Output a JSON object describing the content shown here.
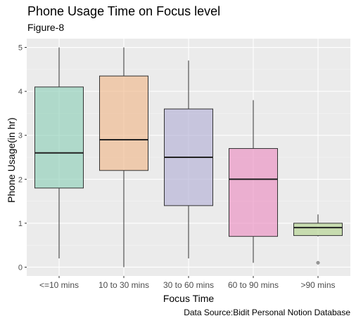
{
  "chart_data": {
    "type": "box",
    "title": "Phone Usage Time on Focus level",
    "subtitle": "Figure-8",
    "xlabel": "Focus Time",
    "ylabel": "Phone Usage(in hr)",
    "caption": "Data Source:Bidit Personal Notion Database",
    "ylim": [
      -0.2,
      5.2
    ],
    "yticks": [
      "0",
      "1",
      "2",
      "3",
      "4",
      "5"
    ],
    "grid": true,
    "boxes": [
      {
        "category": "<=10 mins",
        "min": 0.2,
        "q1": 1.8,
        "median": 2.6,
        "q3": 4.1,
        "max": 5.0,
        "outliers": [],
        "color": "#8fcfb9"
      },
      {
        "category": "10 to 30 mins",
        "min": 0.0,
        "q1": 2.2,
        "median": 2.9,
        "q3": 4.35,
        "max": 5.0,
        "outliers": [],
        "color": "#f0b98c"
      },
      {
        "category": "30 to 60 mins",
        "min": 0.2,
        "q1": 1.4,
        "median": 2.5,
        "q3": 3.6,
        "max": 4.7,
        "outliers": [],
        "color": "#b3b0d6"
      },
      {
        "category": "60 to 90 mins",
        "min": 0.1,
        "q1": 0.7,
        "median": 2.0,
        "q3": 2.7,
        "max": 3.8,
        "outliers": [],
        "color": "#eb8fc1"
      },
      {
        "category": ">90 mins",
        "min": 0.7,
        "q1": 0.72,
        "median": 0.9,
        "q3": 1.0,
        "max": 1.2,
        "outliers": [
          0.1
        ],
        "color": "#b4d48f"
      }
    ]
  }
}
